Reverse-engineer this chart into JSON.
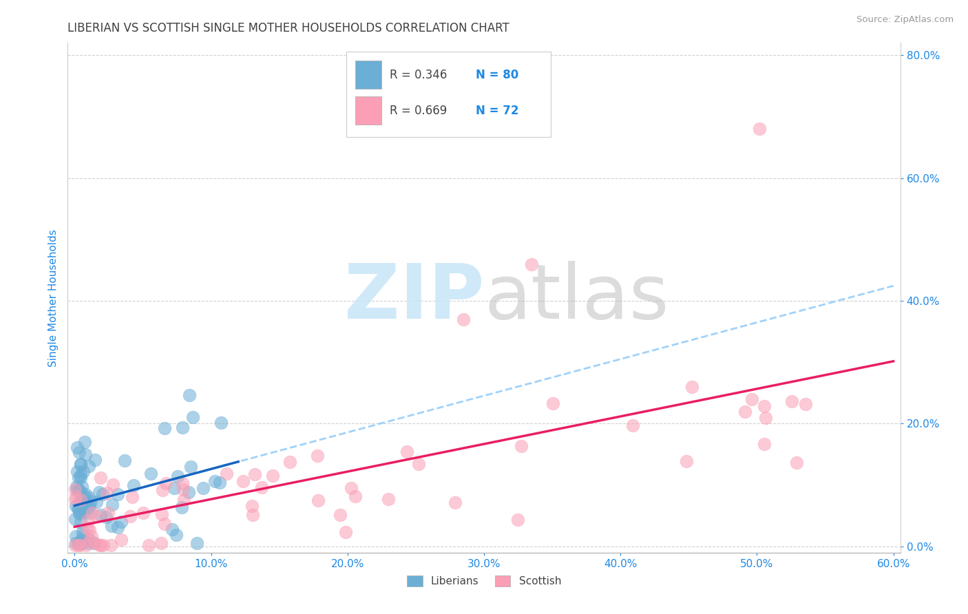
{
  "title": "LIBERIAN VS SCOTTISH SINGLE MOTHER HOUSEHOLDS CORRELATION CHART",
  "source_text": "Source: ZipAtlas.com",
  "ylabel_text": "Single Mother Households",
  "xlim": [
    -0.005,
    0.605
  ],
  "ylim": [
    -0.01,
    0.82
  ],
  "xticks": [
    0.0,
    0.1,
    0.2,
    0.3,
    0.4,
    0.5,
    0.6
  ],
  "xtick_labels": [
    "0.0%",
    "10.0%",
    "20.0%",
    "30.0%",
    "40.0%",
    "50.0%",
    "60.0%"
  ],
  "yticks": [
    0.0,
    0.2,
    0.4,
    0.6,
    0.8
  ],
  "ytick_labels": [
    "0.0%",
    "20.0%",
    "40.0%",
    "60.0%",
    "80.0%"
  ],
  "blue_color": "#6baed6",
  "pink_color": "#fa9fb5",
  "blue_line_color": "#1565C0",
  "pink_line_color": "#E91E63",
  "blue_dash_color": "#90CAF9",
  "background_color": "#ffffff",
  "grid_color": "#cccccc",
  "title_color": "#404040",
  "axis_label_color": "#1E88E5",
  "tick_label_color": "#1E88E5",
  "legend_r1": "R = 0.346",
  "legend_n1": "N = 80",
  "legend_r2": "R = 0.669",
  "legend_n2": "N = 72"
}
